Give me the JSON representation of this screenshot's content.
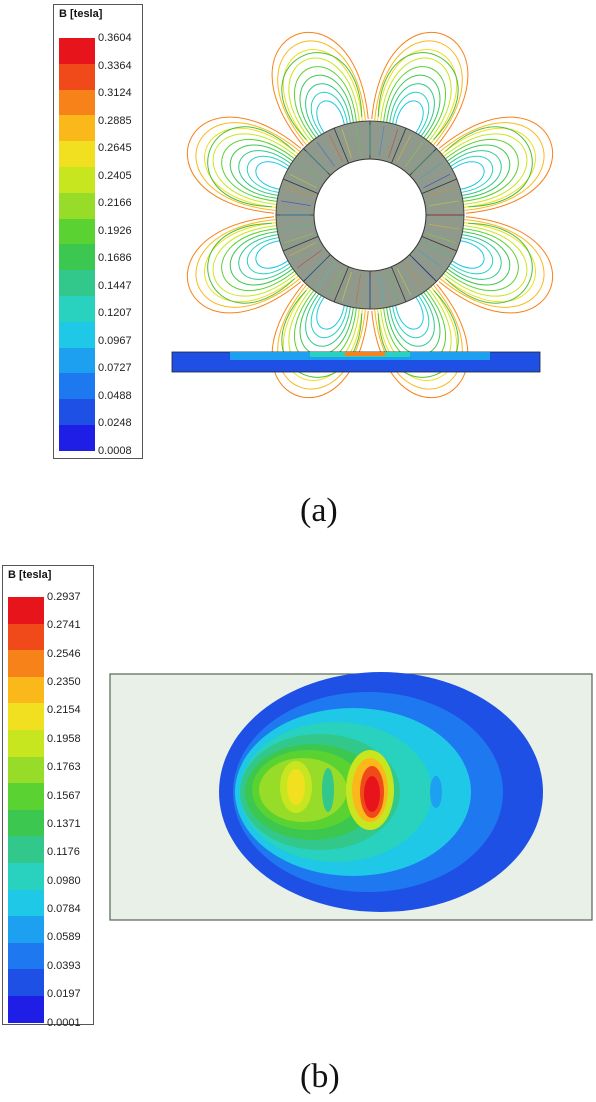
{
  "panel_a": {
    "legend_title": "B [tesla]",
    "ticks": [
      "0.3604",
      "0.3364",
      "0.3124",
      "0.2885",
      "0.2645",
      "0.2405",
      "0.2166",
      "0.1926",
      "0.1686",
      "0.1447",
      "0.1207",
      "0.0967",
      "0.0727",
      "0.0488",
      "0.0248",
      "0.0008"
    ],
    "colors": [
      "#e8141c",
      "#f04a1a",
      "#f7821a",
      "#fbb81a",
      "#f0e020",
      "#c8e620",
      "#96dc28",
      "#5ad232",
      "#3cc850",
      "#32c88c",
      "#28d2be",
      "#1ec8e6",
      "#1ea0f0",
      "#1e78f0",
      "#1e50e6",
      "#1e1ee6"
    ],
    "caption": "(a)"
  },
  "panel_b": {
    "legend_title": "B [tesla]",
    "ticks": [
      "0.2937",
      "0.2741",
      "0.2546",
      "0.2350",
      "0.2154",
      "0.1958",
      "0.1763",
      "0.1567",
      "0.1371",
      "0.1176",
      "0.0980",
      "0.0784",
      "0.0589",
      "0.0393",
      "0.0197",
      "0.0001"
    ],
    "colors": [
      "#e8141c",
      "#f04a1a",
      "#f7821a",
      "#fbb81a",
      "#f0e020",
      "#c8e620",
      "#96dc28",
      "#5ad232",
      "#3cc850",
      "#32c88c",
      "#28d2be",
      "#1ec8e6",
      "#1ea0f0",
      "#1e78f0",
      "#1e50e6",
      "#1e1ee6"
    ],
    "caption": "(b)"
  }
}
